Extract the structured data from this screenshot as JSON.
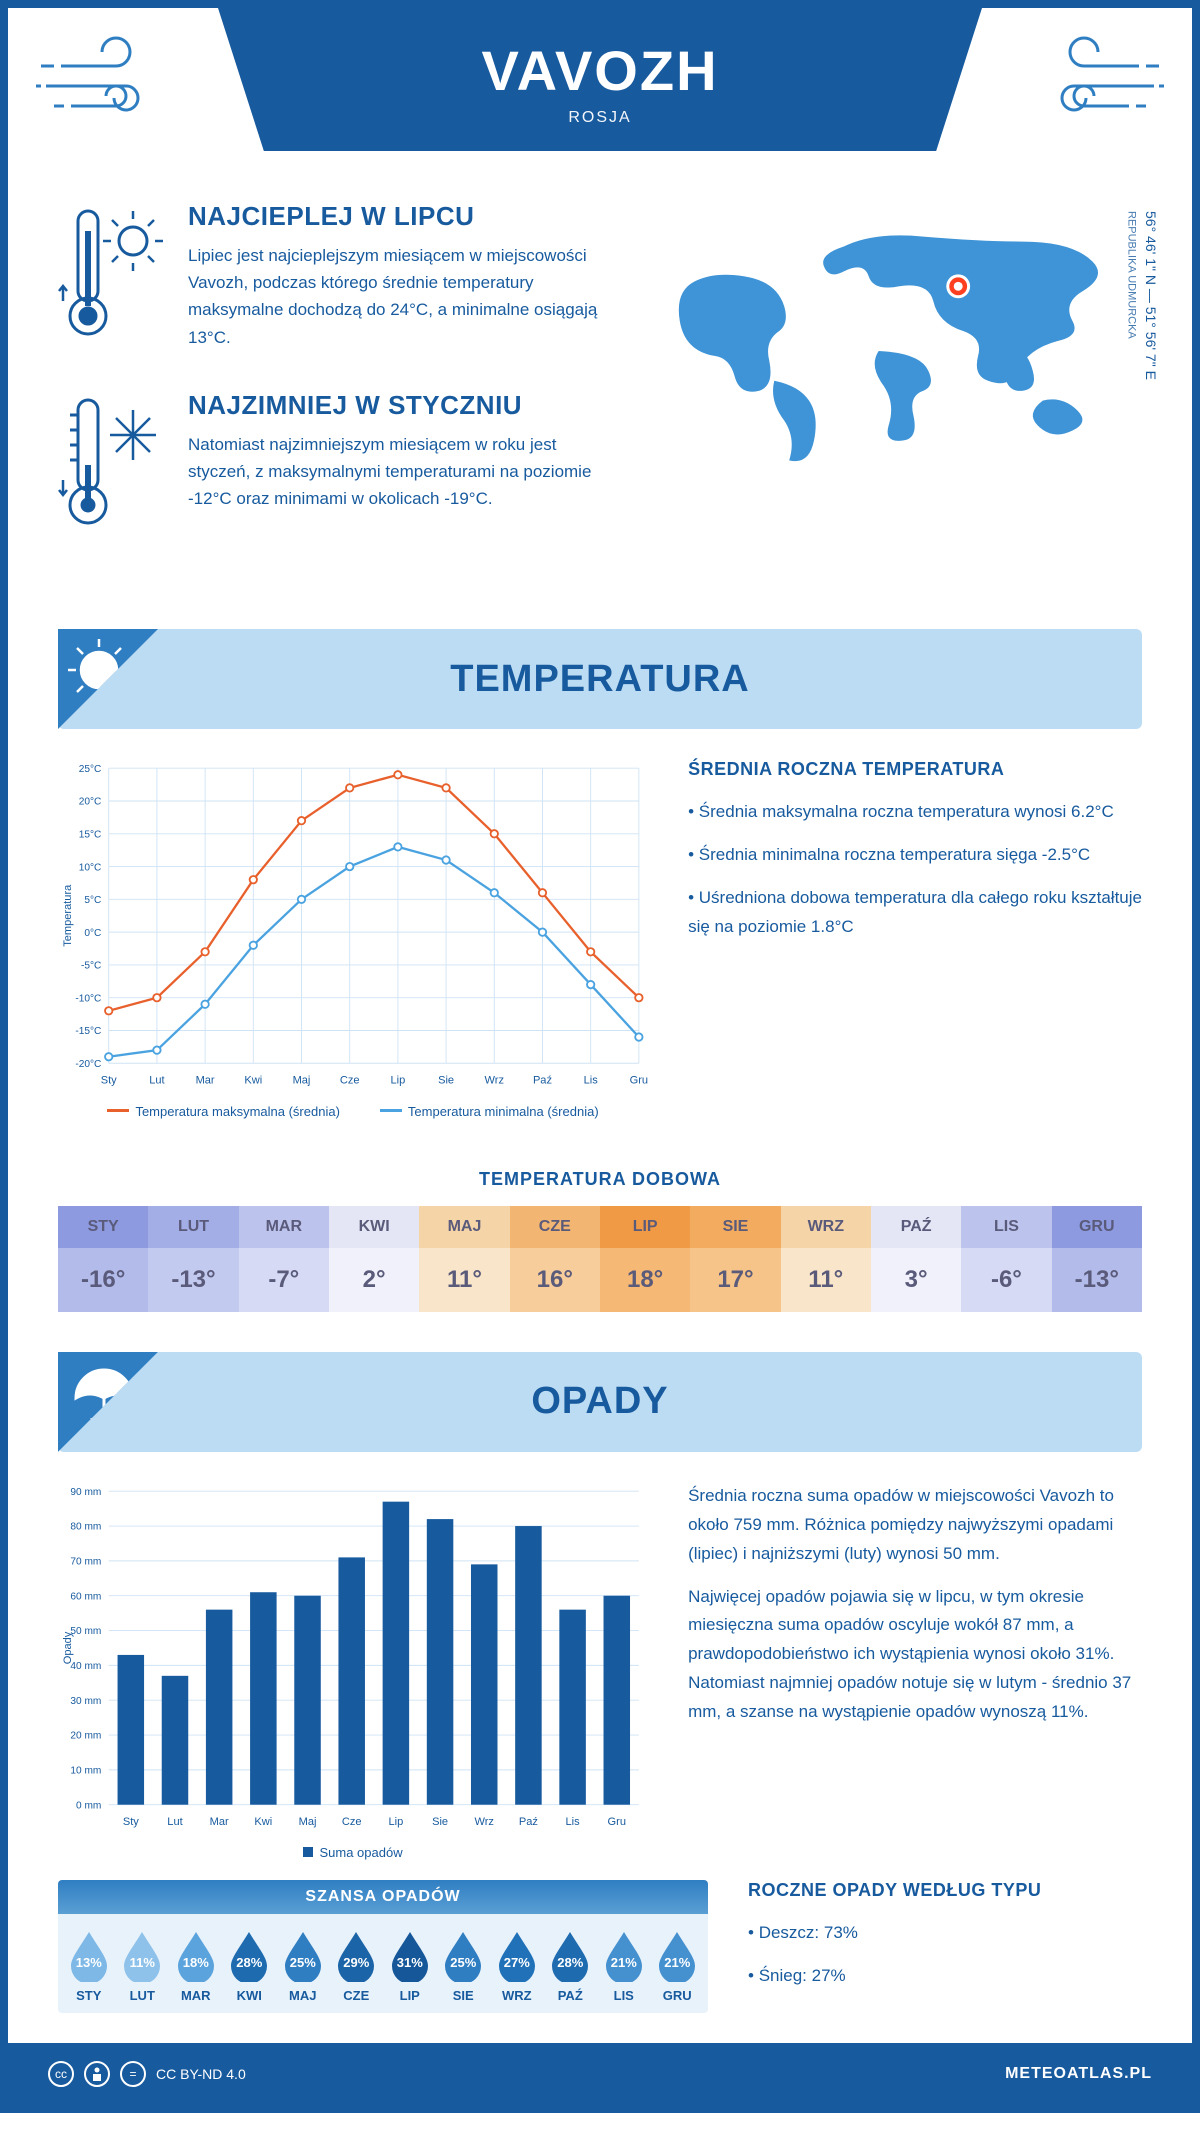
{
  "header": {
    "city": "VAVOZH",
    "country": "ROSJA"
  },
  "coords": {
    "lat": "56° 46' 1\" N",
    "lon": "51° 56' 7\" E",
    "region": "REPUBLIKA UDMURCKA"
  },
  "facts": {
    "warm": {
      "title": "NAJCIEPLEJ W LIPCU",
      "text": "Lipiec jest najcieplejszym miesiącem w miejscowości Vavozh, podczas którego średnie temperatury maksymalne dochodzą do 24°C, a minimalne osiągają 13°C."
    },
    "cold": {
      "title": "NAJZIMNIEJ W STYCZNIU",
      "text": "Natomiast najzimniejszym miesiącem w roku jest styczeń, z maksymalnymi temperaturami na poziomie -12°C oraz minimami w okolicach -19°C."
    }
  },
  "sections": {
    "temperature": "TEMPERATURA",
    "precipitation": "OPADY"
  },
  "temp_chart": {
    "type": "line",
    "ylabel": "Temperatura",
    "months": [
      "Sty",
      "Lut",
      "Mar",
      "Kwi",
      "Maj",
      "Cze",
      "Lip",
      "Sie",
      "Wrz",
      "Paź",
      "Lis",
      "Gru"
    ],
    "ylim": [
      -20,
      25
    ],
    "ytick_step": 5,
    "ytick_labels": [
      "-20°C",
      "-15°C",
      "-10°C",
      "-5°C",
      "0°C",
      "5°C",
      "10°C",
      "15°C",
      "20°C",
      "25°C"
    ],
    "series": {
      "max": {
        "label": "Temperatura maksymalna (średnia)",
        "color": "#e8602c",
        "values": [
          -12,
          -10,
          -3,
          8,
          17,
          22,
          24,
          22,
          15,
          6,
          -3,
          -10
        ]
      },
      "min": {
        "label": "Temperatura minimalna (średnia)",
        "color": "#4aa3e0",
        "values": [
          -19,
          -18,
          -11,
          -2,
          5,
          10,
          13,
          11,
          6,
          0,
          -8,
          -16
        ]
      }
    },
    "grid_color": "#cfe3f4",
    "marker_size": 4
  },
  "temp_side": {
    "title": "ŚREDNIA ROCZNA TEMPERATURA",
    "bullets": [
      "Średnia maksymalna roczna temperatura wynosi 6.2°C",
      "Średnia minimalna roczna temperatura sięga -2.5°C",
      "Uśredniona dobowa temperatura dla całego roku kształtuje się na poziomie 1.8°C"
    ]
  },
  "daily_temp": {
    "title": "TEMPERATURA DOBOWA",
    "months": [
      "STY",
      "LUT",
      "MAR",
      "KWI",
      "MAJ",
      "CZE",
      "LIP",
      "SIE",
      "WRZ",
      "PAŹ",
      "LIS",
      "GRU"
    ],
    "values": [
      "-16°",
      "-13°",
      "-7°",
      "2°",
      "11°",
      "16°",
      "18°",
      "17°",
      "11°",
      "3°",
      "-6°",
      "-13°"
    ],
    "head_colors": [
      "#8d9ae0",
      "#a3ade6",
      "#bcc3ec",
      "#e4e6f5",
      "#f5d4a8",
      "#f3b572",
      "#f09a46",
      "#f2ab5f",
      "#f5d4a8",
      "#e4e6f5",
      "#bcc3ec",
      "#8d9ae0"
    ],
    "val_colors": [
      "#b2bbea",
      "#c3caf0",
      "#d6daf4",
      "#f0f1fa",
      "#f9e5c9",
      "#f7cd9c",
      "#f5b875",
      "#f6c388",
      "#f9e5c9",
      "#f0f1fa",
      "#d6daf4",
      "#b2bbea"
    ],
    "text_color": "#5a5a7a"
  },
  "precip_chart": {
    "type": "bar",
    "ylabel": "Opady",
    "months": [
      "Sty",
      "Lut",
      "Mar",
      "Kwi",
      "Maj",
      "Cze",
      "Lip",
      "Sie",
      "Wrz",
      "Paź",
      "Lis",
      "Gru"
    ],
    "ylim": [
      0,
      90
    ],
    "ytick_step": 10,
    "ytick_labels": [
      "0 mm",
      "10 mm",
      "20 mm",
      "30 mm",
      "40 mm",
      "50 mm",
      "60 mm",
      "70 mm",
      "80 mm",
      "90 mm"
    ],
    "values": [
      43,
      37,
      56,
      61,
      60,
      71,
      87,
      82,
      69,
      80,
      56,
      60
    ],
    "bar_color": "#175a9e",
    "grid_color": "#cfe3f4",
    "legend_label": "Suma opadów"
  },
  "precip_side": {
    "para1": "Średnia roczna suma opadów w miejscowości Vavozh to około 759 mm. Różnica pomiędzy najwyższymi opadami (lipiec) i najniższymi (luty) wynosi 50 mm.",
    "para2": "Najwięcej opadów pojawia się w lipcu, w tym okresie miesięczna suma opadów oscyluje wokół 87 mm, a prawdopodobieństwo ich wystąpienia wynosi około 31%. Natomiast najmniej opadów notuje się w lutym - średnio 37 mm, a szanse na wystąpienie opadów wynoszą 11%."
  },
  "chance": {
    "title": "SZANSA OPADÓW",
    "months": [
      "STY",
      "LUT",
      "MAR",
      "KWI",
      "MAJ",
      "CZE",
      "LIP",
      "SIE",
      "WRZ",
      "PAŹ",
      "LIS",
      "GRU"
    ],
    "values": [
      "13%",
      "11%",
      "18%",
      "28%",
      "25%",
      "29%",
      "31%",
      "25%",
      "27%",
      "28%",
      "21%",
      "21%"
    ],
    "drop_colors": [
      "#7db8e6",
      "#8fc2ea",
      "#5ba3dc",
      "#1e6bb0",
      "#2f7ec2",
      "#1b64a8",
      "#155799",
      "#2f7ec2",
      "#2171b8",
      "#1e6bb0",
      "#4590cf",
      "#4590cf"
    ]
  },
  "precip_type": {
    "title": "ROCZNE OPADY WEDŁUG TYPU",
    "items": [
      "Deszcz: 73%",
      "Śnieg: 27%"
    ]
  },
  "footer": {
    "license": "CC BY-ND 4.0",
    "brand": "METEOATLAS.PL"
  },
  "colors": {
    "primary": "#175a9e",
    "light_blue_bg": "#bcdcf4",
    "accent_blue": "#2f7ec2"
  }
}
